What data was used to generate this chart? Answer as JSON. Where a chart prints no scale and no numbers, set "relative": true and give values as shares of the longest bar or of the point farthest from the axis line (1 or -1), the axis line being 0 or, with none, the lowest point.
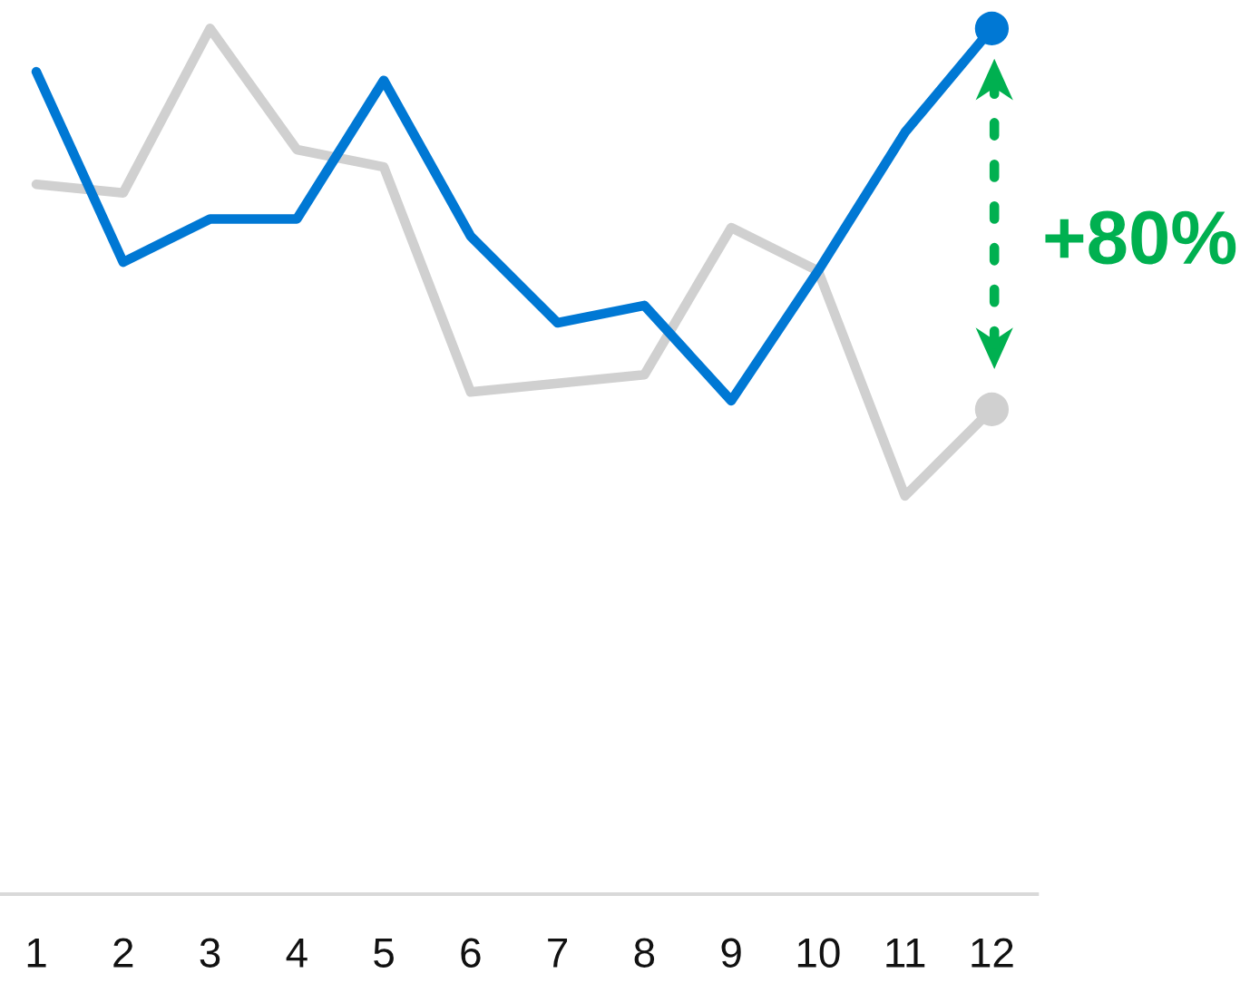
{
  "chart_data": {
    "type": "line",
    "relative": true,
    "categories": [
      "1",
      "2",
      "3",
      "4",
      "5",
      "6",
      "7",
      "8",
      "9",
      "10",
      "11",
      "12"
    ],
    "series": [
      {
        "color": "#d0d0d0",
        "values": [
          0.82,
          0.81,
          1.0,
          0.86,
          0.84,
          0.58,
          0.59,
          0.6,
          0.77,
          0.72,
          0.46,
          0.56
        ]
      },
      {
        "color": "#0078d4",
        "values": [
          0.95,
          0.73,
          0.78,
          0.78,
          0.94,
          0.76,
          0.66,
          0.68,
          0.57,
          0.72,
          0.88,
          1.0
        ]
      },
      {
        "type": "scatter",
        "marker": "circle",
        "color": "#d0d0d0",
        "values": [
          null,
          null,
          null,
          null,
          null,
          null,
          null,
          null,
          null,
          null,
          null,
          0.56
        ]
      },
      {
        "type": "scatter",
        "marker": "circle",
        "color": "#0078d4",
        "values": [
          null,
          null,
          null,
          null,
          null,
          null,
          null,
          null,
          null,
          null,
          null,
          1.0
        ]
      }
    ],
    "annotations": [
      "+80%"
    ]
  }
}
